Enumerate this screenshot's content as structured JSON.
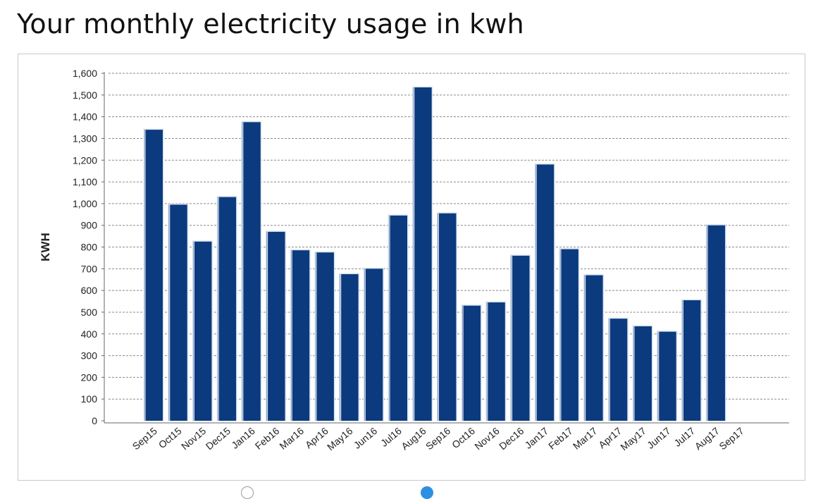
{
  "title": "Your monthly electricity usage in kwh",
  "chart_data": {
    "type": "bar",
    "title": "",
    "xlabel": "",
    "ylabel": "KWH",
    "ylim": [
      0,
      1600
    ],
    "ytick_step": 100,
    "grid": true,
    "bar_color": "#0b3a7e",
    "categories": [
      "Sep15",
      "Oct15",
      "Nov15",
      "Dec15",
      "Jan16",
      "Feb16",
      "Mar16",
      "Apr16",
      "May16",
      "Jun16",
      "Jul16",
      "Aug16",
      "Sep16",
      "Oct16",
      "Nov16",
      "Dec16",
      "Jan17",
      "Feb17",
      "Mar17",
      "Apr17",
      "May17",
      "Jun17",
      "Jul17",
      "Aug17",
      "Sep17"
    ],
    "values": [
      1340,
      995,
      825,
      1030,
      1375,
      870,
      785,
      775,
      675,
      700,
      945,
      1535,
      955,
      530,
      545,
      760,
      1180,
      790,
      670,
      470,
      435,
      410,
      555,
      900,
      null
    ],
    "ytick_labels": [
      "0",
      "100",
      "200",
      "300",
      "400",
      "500",
      "600",
      "700",
      "800",
      "900",
      "1,000",
      "1,100",
      "1,200",
      "1,300",
      "1,400",
      "1,500",
      "1,600"
    ]
  }
}
